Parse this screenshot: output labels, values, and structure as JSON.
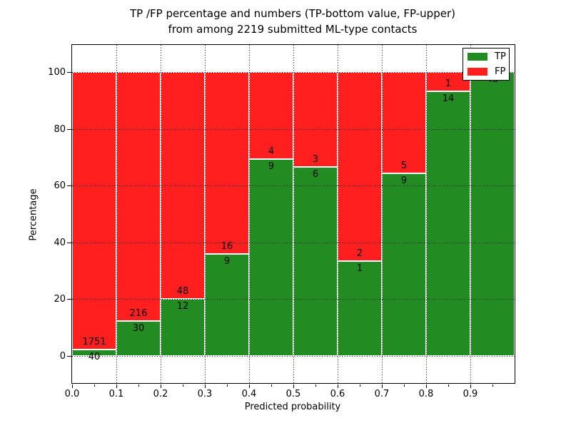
{
  "title": {
    "line1": "TP /FP percentage and numbers (TP-bottom value, FP-upper)",
    "line2": "from among 2219 submitted ML-type contacts"
  },
  "axes": {
    "xlabel": "Predicted probability",
    "ylabel": "Percentage",
    "x_tick_labels": [
      "0.0",
      "0.1",
      "0.2",
      "0.3",
      "0.4",
      "0.5",
      "0.6",
      "0.7",
      "0.8",
      "0.9"
    ],
    "y_tick_labels": [
      "0",
      "20",
      "40",
      "60",
      "80",
      "100"
    ],
    "xlim": [
      0.0,
      1.0
    ],
    "ylim": [
      -9.5,
      109.5
    ],
    "grid": "dotted-black"
  },
  "legend": {
    "position": "upper-right",
    "items": [
      {
        "label": "TP",
        "color": "#228b22"
      },
      {
        "label": "FP",
        "color": "#ff1f1f"
      }
    ]
  },
  "colors": {
    "tp": "#228b22",
    "fp": "#ff1f1f",
    "bar_edge": "#ffffff",
    "grid": "#000000",
    "background": "#ffffff"
  },
  "chart_data": {
    "type": "bar",
    "stacked": true,
    "normalized_to_percent": true,
    "title": "TP /FP percentage and numbers (TP-bottom value, FP-upper) from among 2219 submitted ML-type contacts",
    "xlabel": "Predicted probability",
    "ylabel": "Percentage",
    "total_contacts": 2219,
    "bin_edges": [
      0.0,
      0.1,
      0.2,
      0.3,
      0.4,
      0.5,
      0.6,
      0.7,
      0.8,
      0.9,
      1.0
    ],
    "categories": [
      "0.0-0.1",
      "0.1-0.2",
      "0.2-0.3",
      "0.3-0.4",
      "0.4-0.5",
      "0.5-0.6",
      "0.6-0.7",
      "0.7-0.8",
      "0.8-0.9",
      "0.9-1.0"
    ],
    "series": [
      {
        "name": "TP",
        "values": [
          40,
          30,
          12,
          9,
          9,
          6,
          1,
          9,
          14,
          43
        ]
      },
      {
        "name": "FP",
        "values": [
          1751,
          216,
          48,
          16,
          4,
          3,
          2,
          5,
          1,
          0
        ]
      }
    ],
    "tp_percent": [
      2.2,
      12.2,
      20.0,
      36.0,
      69.2,
      66.7,
      33.3,
      64.3,
      93.3,
      100.0
    ],
    "tp_labels": [
      "40",
      "30",
      "12",
      "9",
      "9",
      "6",
      "1",
      "9",
      "14",
      "43"
    ],
    "fp_labels": [
      "1751",
      "216",
      "48",
      "16",
      "4",
      "3",
      "2",
      "5",
      "1",
      ""
    ]
  }
}
